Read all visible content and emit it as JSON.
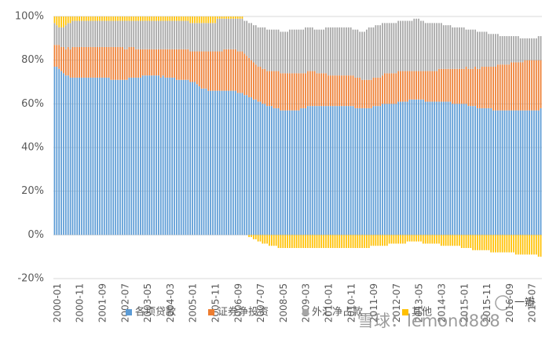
{
  "chart_data": {
    "type": "stacked_bar",
    "categories": [
      "2000-01",
      null,
      null,
      null,
      null,
      null,
      null,
      null,
      null,
      null,
      "2000-11",
      null,
      null,
      null,
      null,
      null,
      null,
      null,
      null,
      null,
      "2001-09",
      null,
      null,
      null,
      null,
      null,
      null,
      null,
      null,
      null,
      "2002-07",
      null,
      null,
      null,
      null,
      null,
      null,
      null,
      null,
      null,
      "2003-05",
      null,
      null,
      null,
      null,
      null,
      null,
      null,
      null,
      null,
      "2004-03",
      null,
      null,
      null,
      null,
      null,
      null,
      null,
      null,
      null,
      "2005-01",
      null,
      null,
      null,
      null,
      null,
      null,
      null,
      null,
      null,
      "2005-11",
      null,
      null,
      null,
      null,
      null,
      null,
      null,
      null,
      null,
      "2006-09",
      null,
      null,
      null,
      null,
      null,
      null,
      null,
      null,
      null,
      "2007-07",
      null,
      null,
      null,
      null,
      null,
      null,
      null,
      null,
      null,
      "2008-05",
      null,
      null,
      null,
      null,
      null,
      null,
      null,
      null,
      null,
      "2009-03",
      null,
      null,
      null,
      null,
      null,
      null,
      null,
      null,
      null,
      "2010-01",
      null,
      null,
      null,
      null,
      null,
      null,
      null,
      null,
      null,
      "2010-11",
      null,
      null,
      null,
      null,
      null,
      null,
      null,
      null,
      null,
      "2011-09",
      null,
      null,
      null,
      null,
      null,
      null,
      null,
      null,
      null,
      "2012-07",
      null,
      null,
      null,
      null,
      null,
      null,
      null,
      null,
      null,
      "2013-05",
      null,
      null,
      null,
      null,
      null,
      null,
      null,
      null,
      null,
      "2014-03",
      null,
      null,
      null,
      null,
      null,
      null,
      null,
      null,
      null,
      "2015-01",
      null,
      null,
      null,
      null,
      null,
      null,
      null,
      null,
      null,
      "2015-11",
      null,
      null,
      null,
      null,
      null,
      null,
      null,
      null,
      null,
      "2016-09",
      null,
      null,
      null,
      null,
      null,
      null,
      null,
      null,
      null,
      "2017-07",
      null,
      null,
      null,
      null,
      null
    ],
    "series": [
      {
        "name": "各项贷款",
        "color": "#5b9bd5",
        "values": [
          77,
          77,
          76,
          75,
          74,
          73,
          73,
          72,
          72,
          72,
          72,
          72,
          72,
          72,
          72,
          72,
          72,
          72,
          72,
          72,
          72,
          72,
          72,
          72,
          72,
          71,
          71,
          71,
          71,
          71,
          71,
          71,
          71,
          72,
          72,
          72,
          72,
          72,
          72,
          73,
          73,
          73,
          73,
          73,
          73,
          73,
          73,
          72,
          73,
          72,
          72,
          72,
          72,
          72,
          71,
          71,
          71,
          71,
          71,
          71,
          70,
          70,
          70,
          69,
          68,
          67,
          67,
          67,
          66,
          66,
          66,
          66,
          66,
          66,
          66,
          66,
          66,
          66,
          66,
          66,
          66,
          65,
          65,
          65,
          64,
          64,
          63,
          63,
          62,
          62,
          61,
          61,
          60,
          60,
          59,
          59,
          59,
          58,
          58,
          58,
          57,
          57,
          57,
          57,
          57,
          57,
          57,
          57,
          57,
          58,
          58,
          58,
          59,
          59,
          59,
          59,
          59,
          59,
          59,
          59,
          59,
          59,
          59,
          59,
          59,
          59,
          59,
          59,
          59,
          59,
          59,
          59,
          59,
          58,
          58,
          58,
          58,
          58,
          58,
          58,
          58,
          59,
          59,
          59,
          59,
          60,
          60,
          60,
          60,
          60,
          60,
          60,
          61,
          61,
          61,
          61,
          61,
          62,
          62,
          62,
          62,
          62,
          62,
          62,
          61,
          61,
          61,
          61,
          61,
          61,
          61,
          61,
          61,
          61,
          61,
          61,
          60,
          60,
          60,
          60,
          60,
          60,
          60,
          59,
          59,
          59,
          59,
          58,
          58,
          58,
          58,
          58,
          58,
          58,
          57,
          57,
          57,
          57,
          57,
          57,
          57,
          57,
          57,
          57,
          57,
          57,
          57,
          57,
          57,
          57,
          57,
          57,
          57,
          57,
          57,
          58
        ]
      },
      {
        "name": "证券净投资",
        "color": "#ed7d31",
        "values": [
          10,
          10,
          11,
          11,
          12,
          12,
          13,
          13,
          14,
          14,
          14,
          14,
          14,
          14,
          14,
          14,
          14,
          14,
          14,
          14,
          14,
          14,
          14,
          14,
          14,
          15,
          15,
          15,
          15,
          15,
          15,
          14,
          14,
          14,
          14,
          14,
          13,
          13,
          13,
          12,
          12,
          12,
          12,
          12,
          12,
          12,
          12,
          13,
          12,
          13,
          13,
          13,
          13,
          13,
          14,
          14,
          14,
          14,
          14,
          14,
          14,
          14,
          14,
          15,
          16,
          17,
          17,
          17,
          18,
          18,
          18,
          18,
          18,
          18,
          18,
          19,
          19,
          19,
          19,
          19,
          19,
          19,
          19,
          19,
          19,
          18,
          18,
          17,
          17,
          16,
          16,
          16,
          16,
          16,
          16,
          16,
          16,
          17,
          17,
          17,
          17,
          17,
          17,
          17,
          17,
          17,
          17,
          17,
          17,
          16,
          16,
          16,
          16,
          16,
          16,
          16,
          15,
          15,
          15,
          15,
          15,
          14,
          14,
          14,
          14,
          14,
          14,
          14,
          14,
          14,
          14,
          14,
          14,
          14,
          14,
          14,
          13,
          13,
          13,
          13,
          13,
          13,
          13,
          13,
          13,
          13,
          14,
          14,
          14,
          14,
          14,
          14,
          14,
          14,
          14,
          14,
          14,
          13,
          13,
          13,
          13,
          13,
          13,
          13,
          14,
          14,
          14,
          14,
          14,
          14,
          15,
          15,
          15,
          15,
          15,
          15,
          16,
          16,
          16,
          16,
          16,
          16,
          17,
          17,
          17,
          17,
          18,
          18,
          18,
          19,
          19,
          19,
          19,
          19,
          20,
          20,
          21,
          21,
          21,
          21,
          21,
          21,
          22,
          22,
          22,
          22,
          22,
          22,
          23,
          23,
          23,
          23,
          23,
          23,
          23,
          22
        ]
      },
      {
        "name": "外汇净占款",
        "color": "#a5a5a5",
        "values": [
          10,
          9,
          8,
          9,
          9,
          11,
          11,
          12,
          12,
          12,
          12,
          12,
          12,
          12,
          12,
          12,
          12,
          12,
          12,
          12,
          12,
          12,
          12,
          12,
          12,
          12,
          12,
          12,
          12,
          12,
          12,
          13,
          13,
          12,
          12,
          12,
          13,
          13,
          13,
          13,
          13,
          13,
          13,
          13,
          13,
          13,
          13,
          13,
          13,
          13,
          13,
          13,
          13,
          13,
          13,
          13,
          13,
          13,
          13,
          13,
          13,
          13,
          13,
          13,
          13,
          13,
          13,
          13,
          13,
          13,
          13,
          13,
          15,
          15,
          15,
          14,
          14,
          14,
          14,
          14,
          14,
          15,
          15,
          15,
          15,
          16,
          16,
          17,
          17,
          18,
          18,
          18,
          19,
          19,
          19,
          19,
          19,
          19,
          19,
          19,
          19,
          19,
          19,
          19,
          20,
          20,
          20,
          20,
          20,
          20,
          20,
          21,
          20,
          20,
          20,
          19,
          20,
          20,
          20,
          20,
          21,
          22,
          22,
          22,
          22,
          22,
          22,
          22,
          22,
          22,
          22,
          22,
          21,
          22,
          22,
          21,
          22,
          22,
          23,
          24,
          24,
          23,
          24,
          24,
          24,
          24,
          23,
          23,
          23,
          23,
          23,
          23,
          23,
          23,
          23,
          23,
          23,
          23,
          23,
          24,
          24,
          24,
          23,
          23,
          22,
          22,
          22,
          22,
          22,
          22,
          21,
          21,
          20,
          20,
          20,
          20,
          19,
          19,
          19,
          19,
          19,
          19,
          17,
          18,
          18,
          18,
          17,
          17,
          17,
          16,
          16,
          16,
          15,
          15,
          15,
          15,
          14,
          13,
          13,
          13,
          13,
          13,
          12,
          12,
          12,
          12,
          11,
          11,
          10,
          10,
          10,
          10,
          10,
          10,
          11,
          11
        ]
      },
      {
        "name": "其他",
        "color": "#ffc000",
        "values": [
          3,
          4,
          5,
          5,
          5,
          4,
          3,
          3,
          2,
          2,
          2,
          2,
          2,
          2,
          2,
          2,
          2,
          2,
          2,
          2,
          2,
          2,
          2,
          2,
          2,
          2,
          2,
          2,
          2,
          2,
          2,
          2,
          2,
          2,
          2,
          2,
          2,
          2,
          2,
          2,
          2,
          2,
          2,
          2,
          2,
          2,
          2,
          2,
          2,
          2,
          2,
          2,
          2,
          2,
          2,
          2,
          2,
          2,
          2,
          2,
          3,
          3,
          3,
          3,
          3,
          3,
          3,
          3,
          3,
          3,
          3,
          3,
          1,
          1,
          1,
          1,
          1,
          1,
          1,
          1,
          1,
          1,
          1,
          1,
          0,
          0,
          -1,
          -1,
          -2,
          -2,
          -3,
          -3,
          -4,
          -4,
          -4,
          -5,
          -5,
          -5,
          -5,
          -6,
          -6,
          -6,
          -6,
          -6,
          -6,
          -6,
          -6,
          -6,
          -6,
          -6,
          -6,
          -6,
          -6,
          -6,
          -6,
          -6,
          -6,
          -6,
          -6,
          -6,
          -6,
          -6,
          -6,
          -6,
          -6,
          -6,
          -6,
          -6,
          -6,
          -6,
          -6,
          -6,
          -6,
          -6,
          -6,
          -6,
          -6,
          -6,
          -6,
          -6,
          -5,
          -5,
          -5,
          -5,
          -5,
          -5,
          -5,
          -5,
          -4,
          -4,
          -4,
          -4,
          -4,
          -4,
          -4,
          -4,
          -3,
          -3,
          -3,
          -3,
          -3,
          -3,
          -3,
          -4,
          -4,
          -4,
          -4,
          -4,
          -4,
          -4,
          -4,
          -5,
          -5,
          -5,
          -5,
          -5,
          -5,
          -5,
          -5,
          -5,
          -6,
          -6,
          -6,
          -6,
          -6,
          -7,
          -7,
          -7,
          -7,
          -7,
          -7,
          -7,
          -7,
          -8,
          -8,
          -8,
          -8,
          -8,
          -8,
          -8,
          -8,
          -8,
          -8,
          -8,
          -9,
          -9,
          -9,
          -9,
          -9,
          -9,
          -9,
          -9,
          -9,
          -9,
          -10,
          -10
        ]
      }
    ],
    "ylim": [
      -20,
      100
    ],
    "yticks": [
      {
        "value": -20,
        "label": "-20%"
      },
      {
        "value": 0,
        "label": "0%"
      },
      {
        "value": 20,
        "label": "20%"
      },
      {
        "value": 40,
        "label": "40%"
      },
      {
        "value": 60,
        "label": "60%"
      },
      {
        "value": 80,
        "label": "80%"
      },
      {
        "value": 100,
        "label": "100%"
      }
    ],
    "grid": true,
    "legend": "bottom",
    "watermark": "雪球：lemond888",
    "badge": "一瓣"
  }
}
